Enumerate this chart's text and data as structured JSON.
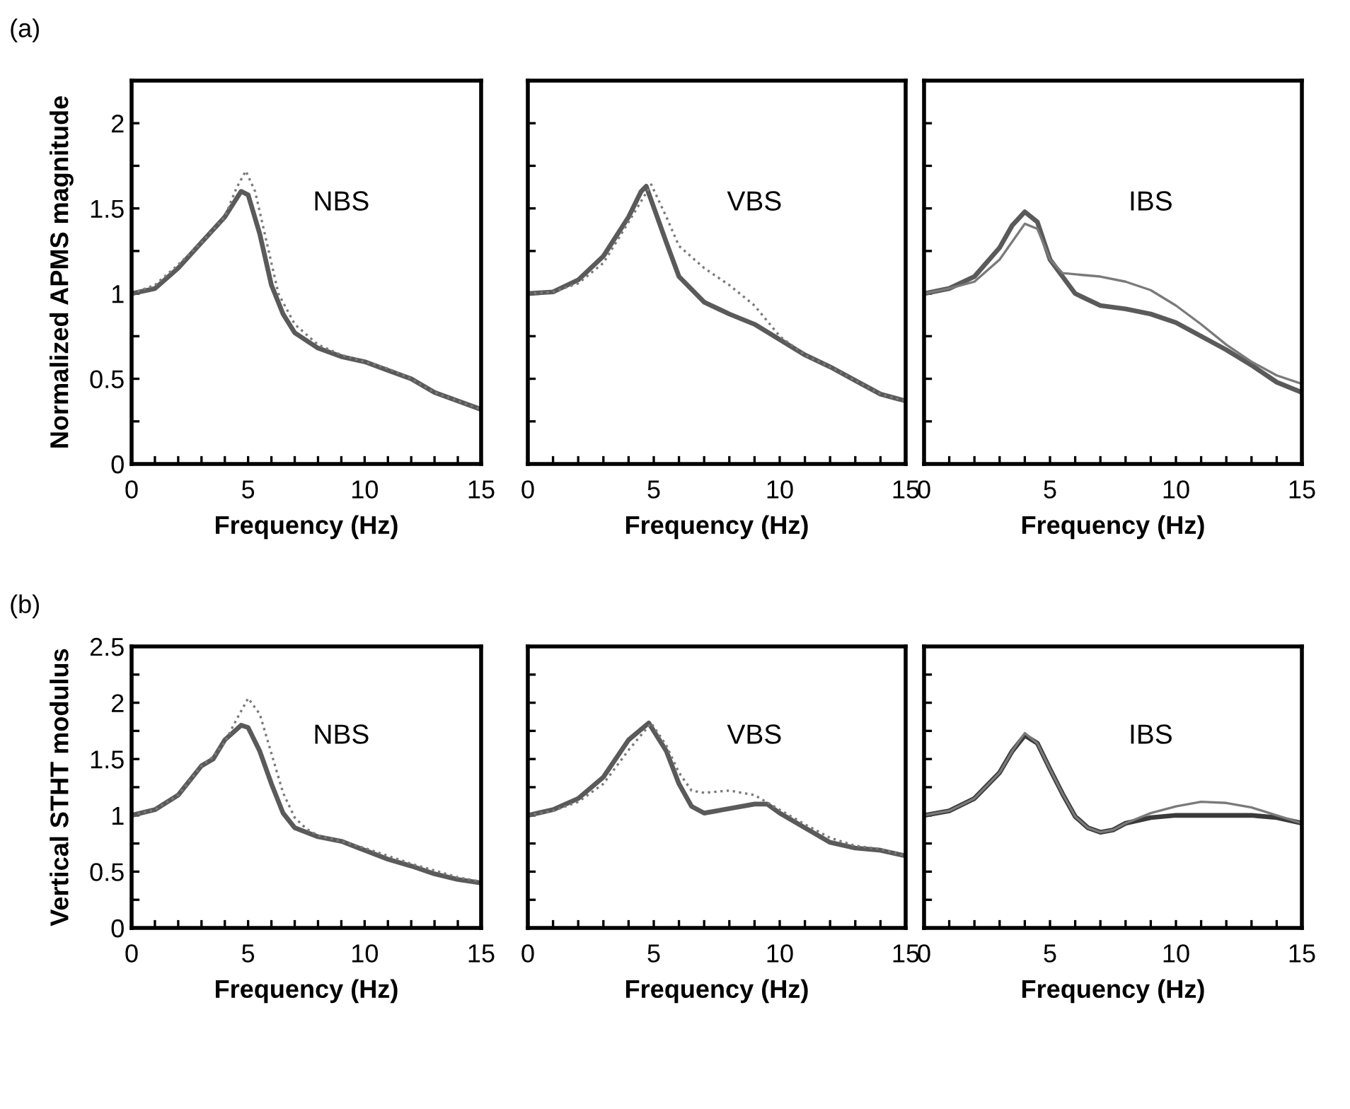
{
  "chart_data": [
    {
      "type": "line",
      "xlabel": "Frequency (Hz)",
      "ylabel": "Normalized APMS magnitude",
      "annotations": [
        "(a)",
        "NBS"
      ],
      "xlim": [
        0,
        15
      ],
      "ylim": [
        0,
        2.25
      ],
      "xticks": [
        0,
        {
          "value": 1,
          "label": null
        },
        {
          "value": 2,
          "label": null
        },
        {
          "value": 3,
          "label": null
        },
        {
          "value": 4,
          "label": null
        },
        5,
        {
          "value": 6,
          "label": null
        },
        {
          "value": 7,
          "label": null
        },
        {
          "value": 8,
          "label": null
        },
        {
          "value": 9,
          "label": null
        },
        10,
        {
          "value": 11,
          "label": null
        },
        {
          "value": 12,
          "label": null
        },
        {
          "value": 13,
          "label": null
        },
        {
          "value": 14,
          "label": null
        },
        15
      ],
      "yticks": [
        0,
        {
          "value": 0.25,
          "label": null
        },
        0.5,
        {
          "value": 0.75,
          "label": null
        },
        1,
        {
          "value": 1.25,
          "label": null
        },
        1.5,
        {
          "value": 1.75,
          "label": null
        },
        2
      ],
      "series": [
        {
          "color": "#5a5a5a",
          "line_style": "solid",
          "x": [
            0,
            1,
            2,
            3,
            4,
            4.7,
            5,
            5.5,
            6,
            6.5,
            7,
            8,
            9,
            10,
            11,
            12,
            13,
            14,
            15
          ],
          "values": [
            1.0,
            1.03,
            1.15,
            1.3,
            1.45,
            1.6,
            1.58,
            1.35,
            1.05,
            0.88,
            0.77,
            0.68,
            0.63,
            0.6,
            0.55,
            0.5,
            0.42,
            0.37,
            0.32
          ]
        },
        {
          "color": "#7a7a7a",
          "line_style": "dotted",
          "x": [
            0,
            1,
            2,
            3,
            4,
            4.5,
            4.9,
            5.3,
            5.8,
            6.3,
            7,
            8,
            9,
            10,
            11,
            12,
            13,
            14,
            15
          ],
          "values": [
            1.0,
            1.05,
            1.17,
            1.3,
            1.45,
            1.62,
            1.72,
            1.6,
            1.3,
            1.0,
            0.82,
            0.7,
            0.64,
            0.6,
            0.56,
            0.5,
            0.42,
            0.37,
            0.32
          ]
        }
      ]
    },
    {
      "type": "line",
      "xlabel": "Frequency (Hz)",
      "annotations": [
        "VBS"
      ],
      "xlim": [
        0,
        15
      ],
      "ylim": [
        0,
        2.25
      ],
      "tick_labels": "x",
      "xticks": [
        0,
        {
          "value": 1,
          "label": null
        },
        {
          "value": 2,
          "label": null
        },
        {
          "value": 3,
          "label": null
        },
        {
          "value": 4,
          "label": null
        },
        5,
        {
          "value": 6,
          "label": null
        },
        {
          "value": 7,
          "label": null
        },
        {
          "value": 8,
          "label": null
        },
        {
          "value": 9,
          "label": null
        },
        10,
        {
          "value": 11,
          "label": null
        },
        {
          "value": 12,
          "label": null
        },
        {
          "value": 13,
          "label": null
        },
        {
          "value": 14,
          "label": null
        },
        15
      ],
      "yticks": [
        0,
        {
          "value": 0.25,
          "label": null
        },
        0.5,
        {
          "value": 0.75,
          "label": null
        },
        1,
        {
          "value": 1.25,
          "label": null
        },
        1.5,
        {
          "value": 1.75,
          "label": null
        },
        2
      ],
      "series": [
        {
          "color": "#5a5a5a",
          "line_style": "solid",
          "x": [
            0,
            1,
            2,
            3,
            4,
            4.5,
            4.7,
            5.5,
            6,
            7,
            8,
            9,
            10,
            11,
            12,
            13,
            14,
            15
          ],
          "values": [
            1.0,
            1.01,
            1.08,
            1.22,
            1.45,
            1.6,
            1.63,
            1.3,
            1.1,
            0.95,
            0.88,
            0.82,
            0.73,
            0.64,
            0.57,
            0.49,
            0.41,
            0.37
          ]
        },
        {
          "color": "#7a7a7a",
          "line_style": "dotted",
          "x": [
            0,
            1,
            2,
            3,
            4,
            4.9,
            5.5,
            6,
            7,
            8,
            9,
            10,
            11,
            12,
            13,
            14,
            15
          ],
          "values": [
            1.0,
            1.01,
            1.06,
            1.18,
            1.42,
            1.64,
            1.45,
            1.28,
            1.15,
            1.05,
            0.93,
            0.75,
            0.64,
            0.57,
            0.49,
            0.41,
            0.37
          ]
        }
      ]
    },
    {
      "type": "line",
      "xlabel": "Frequency (Hz)",
      "annotations": [
        "IBS"
      ],
      "xlim": [
        0,
        15
      ],
      "ylim": [
        0,
        2.25
      ],
      "tick_labels": "x",
      "xticks": [
        0,
        {
          "value": 1,
          "label": null
        },
        {
          "value": 2,
          "label": null
        },
        {
          "value": 3,
          "label": null
        },
        {
          "value": 4,
          "label": null
        },
        5,
        {
          "value": 6,
          "label": null
        },
        {
          "value": 7,
          "label": null
        },
        {
          "value": 8,
          "label": null
        },
        {
          "value": 9,
          "label": null
        },
        10,
        {
          "value": 11,
          "label": null
        },
        {
          "value": 12,
          "label": null
        },
        {
          "value": 13,
          "label": null
        },
        {
          "value": 14,
          "label": null
        },
        15
      ],
      "yticks": [
        0,
        {
          "value": 0.25,
          "label": null
        },
        0.5,
        {
          "value": 0.75,
          "label": null
        },
        1,
        {
          "value": 1.25,
          "label": null
        },
        1.5,
        {
          "value": 1.75,
          "label": null
        },
        2
      ],
      "series": [
        {
          "color": "#5a5a5a",
          "line_style": "solid",
          "x": [
            0,
            1,
            2,
            3,
            3.5,
            4,
            4.5,
            5,
            6,
            7,
            8,
            9,
            10,
            11,
            12,
            13,
            14,
            15
          ],
          "values": [
            1.0,
            1.03,
            1.1,
            1.27,
            1.4,
            1.48,
            1.42,
            1.2,
            1.0,
            0.93,
            0.91,
            0.88,
            0.83,
            0.75,
            0.67,
            0.58,
            0.48,
            0.42
          ]
        },
        {
          "color": "#7a7a7a",
          "line_style": "solid",
          "x": [
            0,
            1,
            2,
            3,
            4,
            4.5,
            5,
            5.5,
            7,
            8,
            9,
            10,
            11,
            12,
            13,
            14,
            15
          ],
          "values": [
            1.0,
            1.03,
            1.07,
            1.2,
            1.41,
            1.38,
            1.2,
            1.12,
            1.1,
            1.07,
            1.02,
            0.93,
            0.82,
            0.7,
            0.6,
            0.52,
            0.47
          ]
        }
      ]
    },
    {
      "type": "line",
      "xlabel": "Frequency (Hz)",
      "ylabel": "Vertical STHT modulus",
      "annotations": [
        "(b)",
        "NBS"
      ],
      "xlim": [
        0,
        15
      ],
      "ylim": [
        0,
        2.5
      ],
      "xticks": [
        0,
        {
          "value": 1,
          "label": null
        },
        {
          "value": 2,
          "label": null
        },
        {
          "value": 3,
          "label": null
        },
        {
          "value": 4,
          "label": null
        },
        5,
        {
          "value": 6,
          "label": null
        },
        {
          "value": 7,
          "label": null
        },
        {
          "value": 8,
          "label": null
        },
        {
          "value": 9,
          "label": null
        },
        10,
        {
          "value": 11,
          "label": null
        },
        {
          "value": 12,
          "label": null
        },
        {
          "value": 13,
          "label": null
        },
        {
          "value": 14,
          "label": null
        },
        15
      ],
      "yticks": [
        0,
        {
          "value": 0.25,
          "label": null
        },
        0.5,
        {
          "value": 0.75,
          "label": null
        },
        1,
        {
          "value": 1.25,
          "label": null
        },
        1.5,
        {
          "value": 1.75,
          "label": null
        },
        2,
        {
          "value": 2.25,
          "label": null
        },
        2.5
      ],
      "series": [
        {
          "color": "#5a5a5a",
          "line_style": "solid",
          "x": [
            0,
            1,
            2,
            3,
            3.5,
            4,
            4.7,
            5,
            5.5,
            6,
            6.5,
            7,
            8,
            9,
            10,
            11,
            12,
            13,
            14,
            15
          ],
          "values": [
            1.0,
            1.05,
            1.18,
            1.44,
            1.5,
            1.67,
            1.8,
            1.78,
            1.57,
            1.28,
            1.02,
            0.89,
            0.81,
            0.77,
            0.69,
            0.61,
            0.55,
            0.48,
            0.43,
            0.4
          ]
        },
        {
          "color": "#7a7a7a",
          "line_style": "dotted",
          "x": [
            0,
            1,
            2,
            3,
            3.5,
            4,
            4.5,
            5,
            5.5,
            6,
            6.5,
            7,
            7.5,
            8,
            9,
            10,
            11,
            12,
            13,
            14,
            15
          ],
          "values": [
            1.0,
            1.05,
            1.18,
            1.44,
            1.52,
            1.65,
            1.85,
            2.04,
            1.9,
            1.55,
            1.2,
            0.98,
            0.88,
            0.82,
            0.77,
            0.71,
            0.64,
            0.57,
            0.51,
            0.45,
            0.41
          ]
        }
      ]
    },
    {
      "type": "line",
      "xlabel": "Frequency (Hz)",
      "annotations": [
        "VBS"
      ],
      "xlim": [
        0,
        15
      ],
      "ylim": [
        0,
        2.5
      ],
      "tick_labels": "x",
      "xticks": [
        0,
        {
          "value": 1,
          "label": null
        },
        {
          "value": 2,
          "label": null
        },
        {
          "value": 3,
          "label": null
        },
        {
          "value": 4,
          "label": null
        },
        5,
        {
          "value": 6,
          "label": null
        },
        {
          "value": 7,
          "label": null
        },
        {
          "value": 8,
          "label": null
        },
        {
          "value": 9,
          "label": null
        },
        10,
        {
          "value": 11,
          "label": null
        },
        {
          "value": 12,
          "label": null
        },
        {
          "value": 13,
          "label": null
        },
        {
          "value": 14,
          "label": null
        },
        15
      ],
      "yticks": [
        0,
        {
          "value": 0.25,
          "label": null
        },
        0.5,
        {
          "value": 0.75,
          "label": null
        },
        1,
        {
          "value": 1.25,
          "label": null
        },
        1.5,
        {
          "value": 1.75,
          "label": null
        },
        2,
        {
          "value": 2.25,
          "label": null
        },
        2.5
      ],
      "series": [
        {
          "color": "#5a5a5a",
          "line_style": "solid",
          "x": [
            0,
            1,
            2,
            3,
            4,
            4.8,
            5.5,
            6,
            6.5,
            7,
            8,
            9,
            9.5,
            10,
            11,
            12,
            13,
            14,
            15
          ],
          "values": [
            1.0,
            1.05,
            1.15,
            1.34,
            1.67,
            1.82,
            1.57,
            1.28,
            1.08,
            1.02,
            1.06,
            1.1,
            1.1,
            1.02,
            0.89,
            0.76,
            0.71,
            0.69,
            0.64
          ]
        },
        {
          "color": "#7a7a7a",
          "line_style": "dotted",
          "x": [
            0,
            1,
            2,
            3,
            4,
            4.9,
            5.5,
            6,
            6.5,
            7,
            8,
            9,
            10,
            11,
            12,
            13,
            14,
            15
          ],
          "values": [
            1.0,
            1.04,
            1.12,
            1.28,
            1.58,
            1.82,
            1.62,
            1.38,
            1.22,
            1.2,
            1.22,
            1.18,
            1.05,
            0.92,
            0.8,
            0.73,
            0.7,
            0.64
          ]
        }
      ]
    },
    {
      "type": "line",
      "xlabel": "Frequency (Hz)",
      "annotations": [
        "IBS"
      ],
      "xlim": [
        0,
        15
      ],
      "ylim": [
        0,
        2.5
      ],
      "tick_labels": "x",
      "xticks": [
        0,
        {
          "value": 1,
          "label": null
        },
        {
          "value": 2,
          "label": null
        },
        {
          "value": 3,
          "label": null
        },
        {
          "value": 4,
          "label": null
        },
        5,
        {
          "value": 6,
          "label": null
        },
        {
          "value": 7,
          "label": null
        },
        {
          "value": 8,
          "label": null
        },
        {
          "value": 9,
          "label": null
        },
        10,
        {
          "value": 11,
          "label": null
        },
        {
          "value": 12,
          "label": null
        },
        {
          "value": 13,
          "label": null
        },
        {
          "value": 14,
          "label": null
        },
        15
      ],
      "yticks": [
        0,
        {
          "value": 0.25,
          "label": null
        },
        0.5,
        {
          "value": 0.75,
          "label": null
        },
        1,
        {
          "value": 1.25,
          "label": null
        },
        1.5,
        {
          "value": 1.75,
          "label": null
        },
        2,
        {
          "value": 2.25,
          "label": null
        },
        2.5
      ],
      "series": [
        {
          "color": "#3a3a3a",
          "line_style": "solid",
          "x": [
            0,
            1,
            2,
            3,
            3.5,
            4,
            4.5,
            5,
            5.5,
            6,
            6.5,
            7,
            7.5,
            8,
            9,
            10,
            11,
            12,
            13,
            14,
            15
          ],
          "values": [
            1.0,
            1.04,
            1.15,
            1.38,
            1.57,
            1.71,
            1.64,
            1.41,
            1.19,
            0.99,
            0.89,
            0.85,
            0.87,
            0.93,
            0.98,
            1.0,
            1.0,
            1.0,
            1.0,
            0.98,
            0.93
          ]
        },
        {
          "color": "#7a7a7a",
          "line_style": "solid",
          "x": [
            0,
            1,
            2,
            3,
            3.5,
            4,
            4.5,
            5,
            5.5,
            6,
            6.5,
            7,
            7.5,
            8,
            9,
            10,
            11,
            12,
            13,
            14,
            15
          ],
          "values": [
            1.0,
            1.04,
            1.15,
            1.38,
            1.57,
            1.73,
            1.64,
            1.41,
            1.19,
            0.99,
            0.89,
            0.85,
            0.87,
            0.93,
            1.02,
            1.08,
            1.12,
            1.11,
            1.07,
            1.0,
            0.93
          ]
        }
      ]
    }
  ]
}
